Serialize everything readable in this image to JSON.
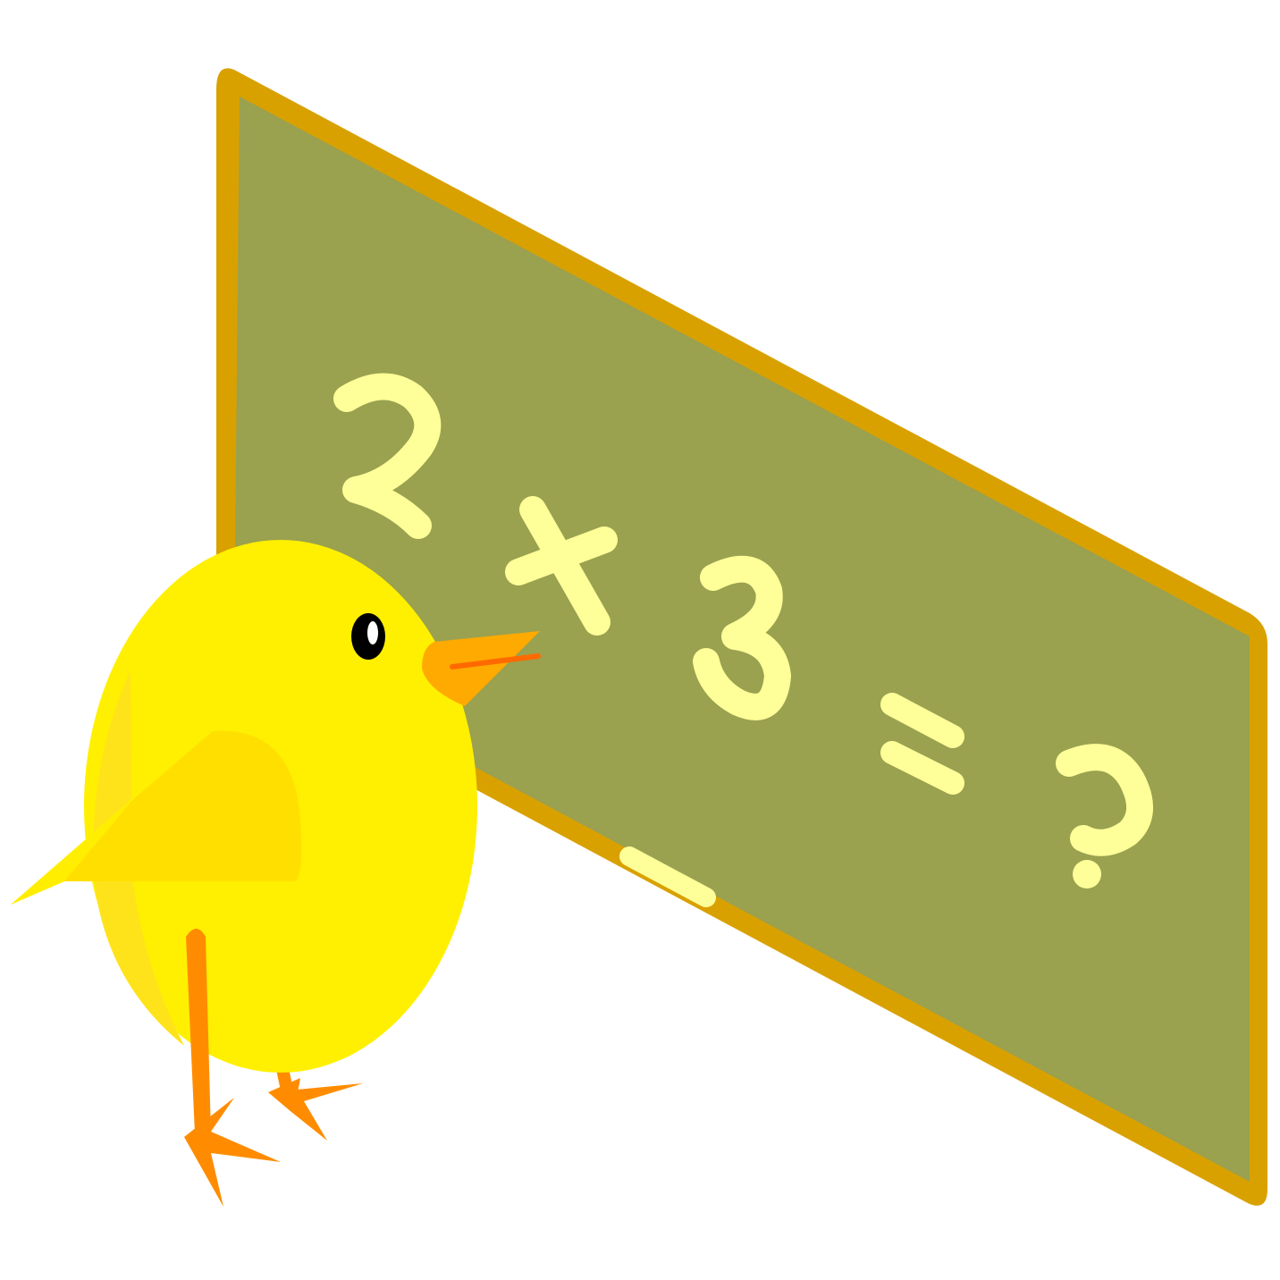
{
  "blackboard": {
    "equation": {
      "operand_1": "2",
      "operator_plus": "+",
      "operand_2": "3",
      "equals": "=",
      "unknown": "?"
    }
  },
  "colors": {
    "board_frame": "#D9A100",
    "board_surface": "#9AA14F",
    "chalk": "#FFFF99",
    "chick_body": "#FFEF00",
    "chick_wing": "#FFDF00",
    "chick_shade": "#FFE31A",
    "beak": "#FFAA00",
    "beak_line": "#FF6A00",
    "legs": "#FF8C00",
    "eye": "#000000",
    "background": "#FFFFFF"
  },
  "icons": {
    "character": "chick-icon",
    "board": "blackboard-icon",
    "chalk_piece": "chalk-icon"
  }
}
